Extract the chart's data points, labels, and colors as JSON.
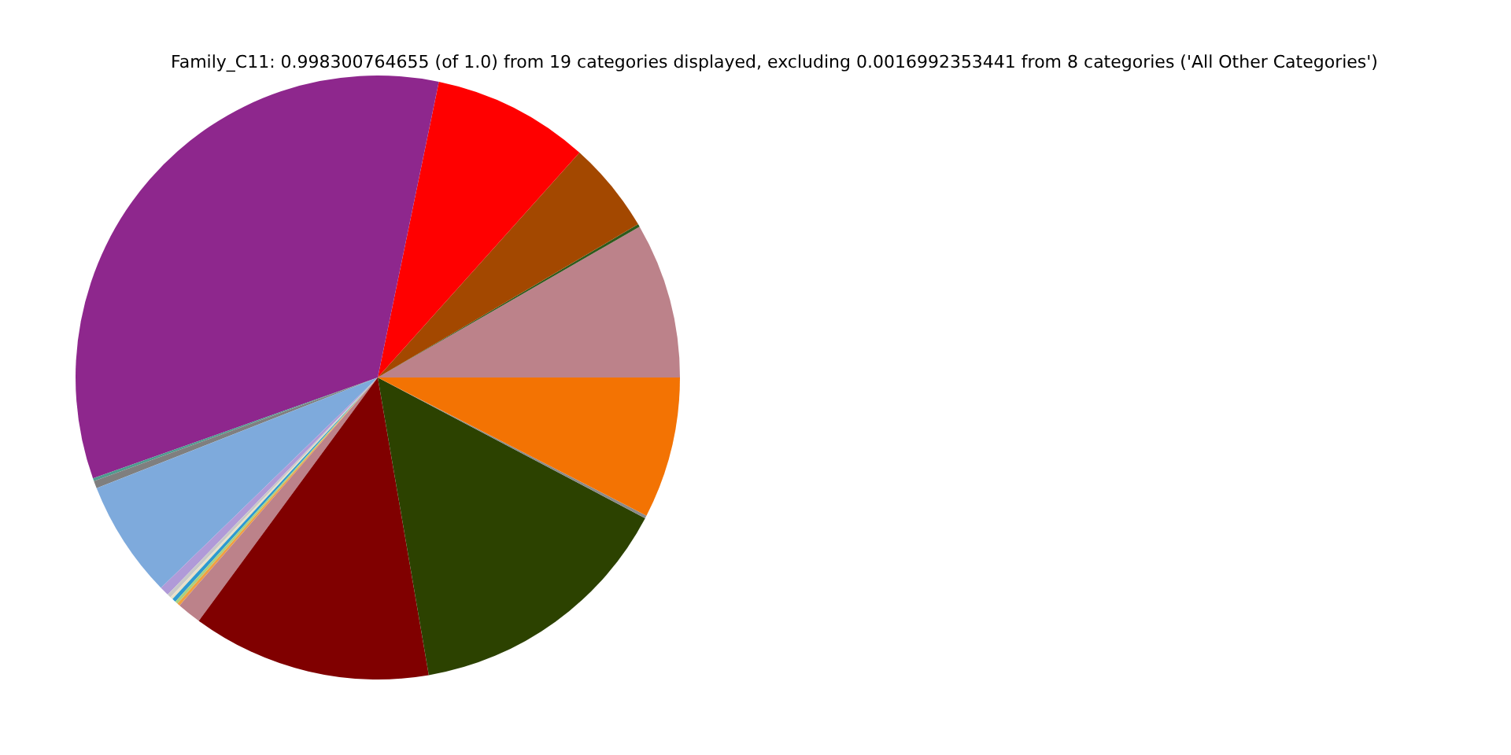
{
  "chart_data": {
    "type": "pie",
    "title": "Family_C11: 0.998300764655 (of 1.0) from 19 categories displayed, excluding 0.0016992353441 from 8 categories ('All Other Categories')",
    "categories": [
      null,
      null,
      null,
      null,
      null,
      null,
      null,
      null,
      null,
      null,
      null,
      null,
      null,
      null,
      null,
      null,
      null,
      null,
      null
    ],
    "values": [
      8.33,
      0.15,
      4.9,
      8.4,
      33.7,
      0.15,
      0.4,
      6.3,
      0.5,
      0.2,
      0.15,
      0.2,
      0.15,
      0.15,
      1.3,
      12.8,
      14.6,
      0.15,
      7.57
    ],
    "colors": [
      "#bc828a",
      "#2e5a1c",
      "#a34800",
      "#ff0000",
      "#8e278d",
      "#4f9b8f",
      "#7f7f7f",
      "#7eaadc",
      "#b09ad8",
      "#c8c8c8",
      "#e8e0c8",
      "#2c9ad0",
      "#a8d080",
      "#f0a040",
      "#bc828a",
      "#800000",
      "#2c4200",
      "#8a8a8a",
      "#f37303"
    ]
  }
}
